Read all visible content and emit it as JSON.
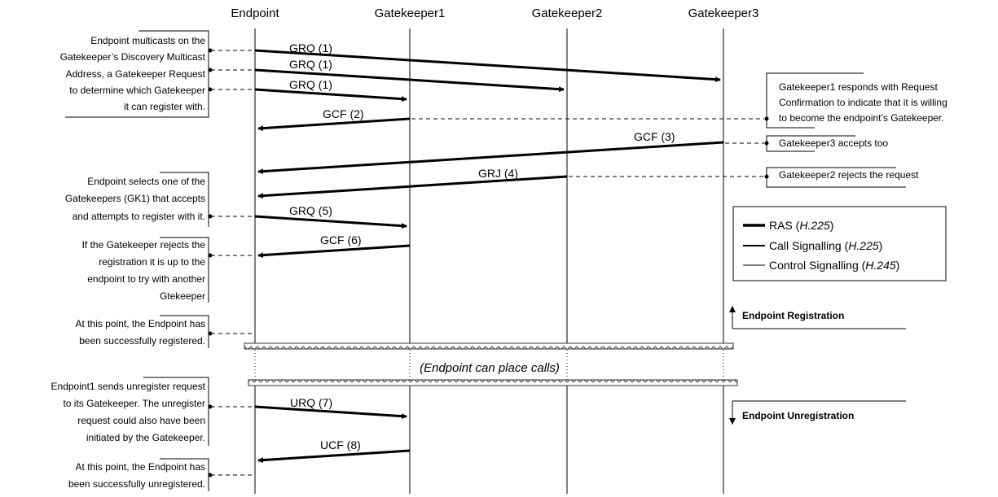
{
  "participants": [
    "Endpoint",
    "Gatekeeper1",
    "Gatekeeper2",
    "Gatekeeper3"
  ],
  "messages": [
    {
      "label": "GRQ (1)",
      "from": "Endpoint",
      "to": "Gatekeeper3"
    },
    {
      "label": "GRQ (1)",
      "from": "Endpoint",
      "to": "Gatekeeper2"
    },
    {
      "label": "GRQ (1)",
      "from": "Endpoint",
      "to": "Gatekeeper1"
    },
    {
      "label": "GCF (2)",
      "from": "Gatekeeper1",
      "to": "Endpoint"
    },
    {
      "label": "GCF (3)",
      "from": "Gatekeeper3",
      "to": "Endpoint"
    },
    {
      "label": "GRJ (4)",
      "from": "Gatekeeper2",
      "to": "Endpoint"
    },
    {
      "label": "GRQ (5)",
      "from": "Endpoint",
      "to": "Gatekeeper1"
    },
    {
      "label": "GCF (6)",
      "from": "Gatekeeper1",
      "to": "Endpoint"
    },
    {
      "label": "URQ (7)",
      "from": "Endpoint",
      "to": "Gatekeeper1"
    },
    {
      "label": "UCF (8)",
      "from": "Gatekeeper1",
      "to": "Endpoint"
    }
  ],
  "left_notes": [
    [
      "Endpoint multicasts on the",
      "Gatekeeper’s Discovery Multicast",
      "Address, a Gatekeeper Request",
      "to determine which Gatekeeper",
      "it can register with."
    ],
    [
      "Endpoint selects one of the",
      "Gatekeepers (GK1) that accepts",
      "and attempts to register with it."
    ],
    [
      "If the Gatekeeper rejects the",
      "registration it is up to the",
      "endpoint to try with another",
      "Gtekeeper"
    ],
    [
      "At this point, the Endpoint has",
      "been successfully registered."
    ],
    [
      "Endpoint1 sends unregister request",
      "to its Gatekeeper. The unregister",
      "request could also have been",
      "initiated by the Gatekeeper."
    ],
    [
      "At this point, the Endpoint has",
      "been successfully unregistered."
    ]
  ],
  "right_notes": [
    [
      "Gatekeeper1 responds with Request",
      "Confirmation to indicate that it is willing",
      "to become the endpoint’s Gatekeeper."
    ],
    [
      "Gatekeeper3 accepts too"
    ],
    [
      "Gatekeeper2 rejects the request"
    ]
  ],
  "legend": [
    {
      "name": "RAS",
      "spec": "H.225"
    },
    {
      "name": "Call Signalling",
      "spec": "H.225"
    },
    {
      "name": "Control Signalling",
      "spec": "H.245"
    }
  ],
  "phases": {
    "registration": "Endpoint Registration",
    "middle": "(Endpoint can place calls)",
    "unregistration": "Endpoint Unregistration"
  }
}
